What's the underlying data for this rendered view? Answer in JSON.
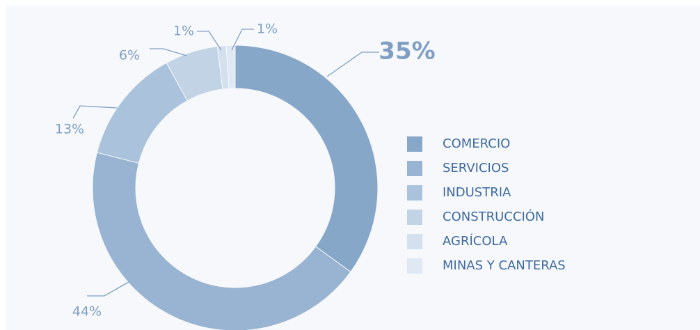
{
  "chart_data": {
    "type": "pie",
    "categories": [
      "COMERCIO",
      "SERVICIOS",
      "INDUSTRIA",
      "CONSTRUCCIÓN",
      "AGRÍCOLA",
      "MINAS Y CANTERAS"
    ],
    "values": [
      35,
      44,
      13,
      6,
      1,
      1
    ],
    "value_labels": [
      "35%",
      "44%",
      "13%",
      "6%",
      "1%",
      "1%"
    ],
    "colors": [
      "#87a7c9",
      "#98b4d2",
      "#abc2dc",
      "#c2d3e6",
      "#d4e0ee",
      "#e0e9f3"
    ]
  }
}
